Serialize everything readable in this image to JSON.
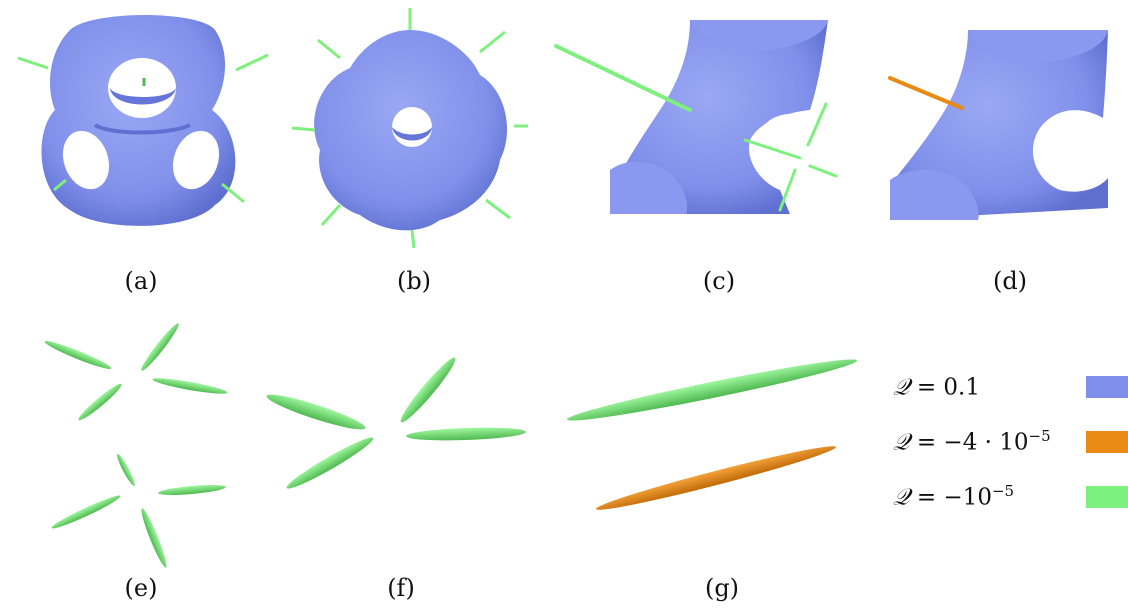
{
  "captions": [
    "(a)",
    "(b)",
    "(c)",
    "(d)",
    "(e)",
    "(f)",
    "(g)"
  ],
  "legend": [
    {
      "symbol": "𝒬",
      "rel": "=",
      "value_text": "0.1",
      "exp": "",
      "color": "#8090ea"
    },
    {
      "symbol": "𝒬",
      "rel": "=",
      "value_text": "−4 · 10",
      "exp": "−5",
      "color": "#e88a14"
    },
    {
      "symbol": "𝒬",
      "rel": "=",
      "value_text": "−10",
      "exp": "−5",
      "color": "#7ef07e"
    }
  ],
  "colors": {
    "surface": "#8090ea",
    "surface_shade": "#5f6fd0",
    "orange": "#e88a14",
    "green": "#7ef07e",
    "green_dark": "#4fb84f"
  },
  "icons": [
    "isosurface-a",
    "isosurface-b",
    "isosurface-c",
    "isosurface-d",
    "vortex-e",
    "vortex-f",
    "vortex-g"
  ]
}
